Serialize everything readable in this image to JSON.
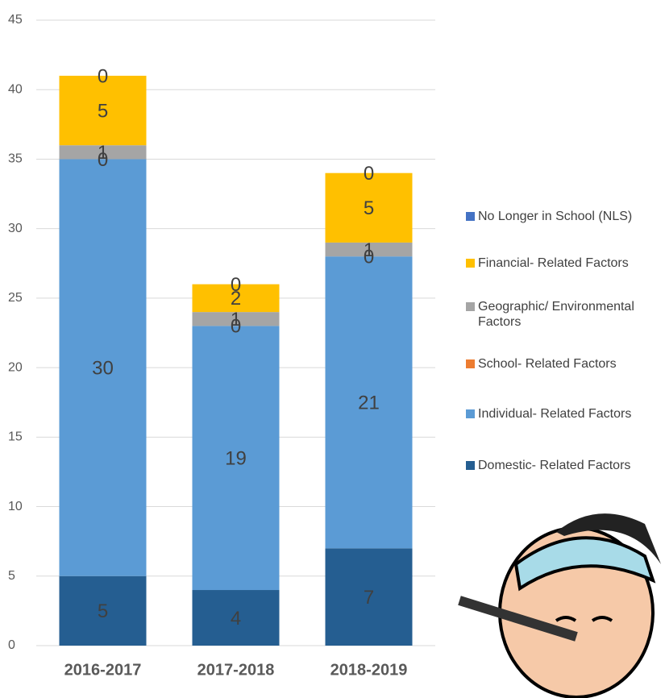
{
  "chart_data": {
    "type": "stacked-bar",
    "categories": [
      "2016-2017",
      "2017-2018",
      "2018-2019"
    ],
    "series": [
      {
        "name": "Domestic- Related Factors",
        "color": "#255e91",
        "values": [
          5,
          4,
          7
        ]
      },
      {
        "name": "Individual- Related Factors",
        "color": "#5b9bd5",
        "values": [
          30,
          19,
          21
        ]
      },
      {
        "name": "School- Related Factors",
        "color": "#ed7d31",
        "values": [
          0,
          0,
          0
        ]
      },
      {
        "name": "Geographic/ Environmental Factors",
        "color": "#a5a5a5",
        "values": [
          1,
          1,
          1
        ]
      },
      {
        "name": "Financial- Related Factors",
        "color": "#ffc000",
        "values": [
          5,
          2,
          5
        ]
      },
      {
        "name": "No Longer in School (NLS)",
        "color": "#4472c4",
        "values": [
          0,
          0,
          0
        ]
      }
    ],
    "ylim": [
      0,
      45
    ],
    "yticks": [
      0,
      5,
      10,
      15,
      20,
      25,
      30,
      35,
      40,
      45
    ],
    "grid": true,
    "legend": "right"
  }
}
